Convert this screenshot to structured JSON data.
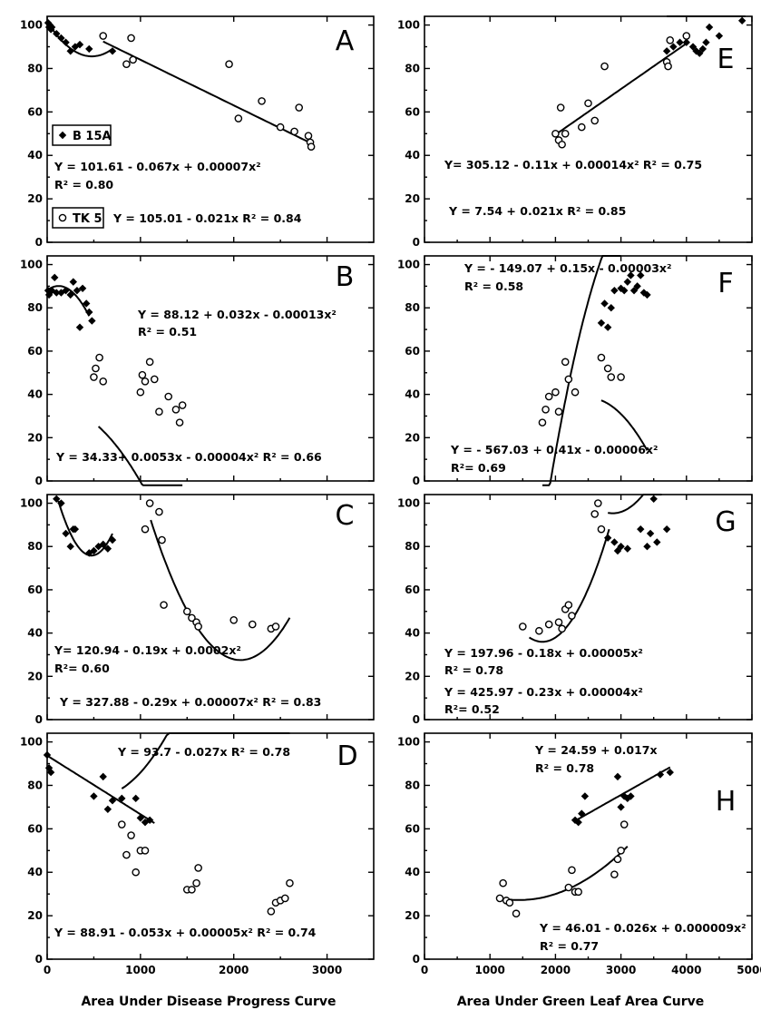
{
  "chart_data": [
    {
      "panel": "A",
      "type": "scatter",
      "xlim": [
        0,
        3500
      ],
      "ylim": [
        0,
        100
      ],
      "xticks": [
        "0",
        "1000",
        "2000",
        "3000"
      ],
      "yticks": [
        "0",
        "20",
        "40",
        "60",
        "80",
        "100"
      ],
      "annotations": [
        {
          "text": "Y = 101.61 - 0.067x + 0.00007x²"
        },
        {
          "text": "R² = 0.80"
        },
        {
          "text": "Y = 105.01 - 0.021x    R² = 0.84"
        }
      ],
      "legend": [
        {
          "label": "B 15A",
          "marker": "filled-diamond"
        },
        {
          "label": "TK 5",
          "marker": "open-circle"
        }
      ],
      "series": [
        {
          "name": "B 15A",
          "marker": "filled-diamond",
          "x": [
            10,
            20,
            30,
            40,
            50,
            100,
            150,
            200,
            250,
            300,
            350,
            450,
            700
          ],
          "y": [
            101,
            99,
            100,
            98,
            99,
            96,
            94,
            92,
            88,
            90,
            91,
            89,
            88
          ],
          "fit": {
            "kind": "quadratic",
            "coef": [
              101.61,
              -0.067,
              7e-05
            ],
            "x_range": [
              0,
              700
            ]
          }
        },
        {
          "name": "TK 5",
          "marker": "open-circle",
          "x": [
            600,
            850,
            900,
            920,
            1950,
            2050,
            2300,
            2500,
            2650,
            2700,
            2800,
            2820,
            2830
          ],
          "y": [
            95,
            82,
            94,
            84,
            82,
            57,
            65,
            53,
            51,
            62,
            49,
            46,
            44
          ],
          "fit": {
            "kind": "linear",
            "coef": [
              105.01,
              -0.021
            ],
            "x_range": [
              600,
              2830
            ]
          }
        }
      ]
    },
    {
      "panel": "B",
      "type": "scatter",
      "xlim": [
        0,
        3500
      ],
      "ylim": [
        0,
        100
      ],
      "xticks": [
        "0",
        "1000",
        "2000",
        "3000"
      ],
      "yticks": [
        "0",
        "20",
        "40",
        "60",
        "80",
        "100"
      ],
      "annotations": [
        {
          "text": "Y = 88.12 + 0.032x - 0.00013x²"
        },
        {
          "text": "R² = 0.51"
        },
        {
          "text": "Y = 34.33+ 0.0053x - 0.00004x²   R² = 0.66"
        }
      ],
      "series": [
        {
          "name": "B 15A",
          "marker": "filled-diamond",
          "x": [
            10,
            20,
            50,
            80,
            100,
            150,
            200,
            250,
            280,
            320,
            350,
            380,
            420,
            450,
            480
          ],
          "y": [
            88,
            86,
            88,
            94,
            87,
            87,
            88,
            86,
            92,
            88,
            71,
            89,
            82,
            78,
            74
          ],
          "fit": {
            "kind": "quadratic",
            "coef": [
              88.12,
              0.032,
              -0.00013
            ],
            "x_range": [
              0,
              450
            ]
          }
        },
        {
          "name": "TK 5",
          "marker": "open-circle",
          "x": [
            500,
            520,
            560,
            600,
            1000,
            1020,
            1050,
            1100,
            1150,
            1200,
            1300,
            1380,
            1420,
            1450
          ],
          "y": [
            48,
            52,
            57,
            46,
            41,
            49,
            46,
            55,
            47,
            32,
            39,
            33,
            27,
            35
          ],
          "fit": {
            "kind": "quadratic",
            "coef": [
              34.33,
              0.0053,
              -4e-05
            ],
            "x_range": [
              550,
              1450
            ]
          }
        }
      ]
    },
    {
      "panel": "C",
      "type": "scatter",
      "xlim": [
        0,
        3500
      ],
      "ylim": [
        0,
        100
      ],
      "xticks": [
        "0",
        "1000",
        "2000",
        "3000"
      ],
      "yticks": [
        "0",
        "20",
        "40",
        "60",
        "80",
        "100"
      ],
      "annotations": [
        {
          "text": "Y= 120.94 - 0.19x + 0.0002x²"
        },
        {
          "text": "R²= 0.60"
        },
        {
          "text": "Y = 327.88 - 0.29x + 0.00007x²   R² = 0.83"
        }
      ],
      "series": [
        {
          "name": "B 15A",
          "marker": "filled-diamond",
          "x": [
            100,
            150,
            200,
            250,
            280,
            300,
            450,
            500,
            550,
            600,
            650,
            700
          ],
          "y": [
            102,
            100,
            86,
            80,
            88,
            88,
            77,
            78,
            80,
            81,
            79,
            83
          ],
          "fit": {
            "kind": "quadratic",
            "coef": [
              120.94,
              -0.19,
              0.0002
            ],
            "x_range": [
              120,
              700
            ]
          }
        },
        {
          "name": "TK 5",
          "marker": "open-circle",
          "x": [
            1050,
            1100,
            1200,
            1230,
            1250,
            1500,
            1550,
            1600,
            1620,
            2000,
            2200,
            2400,
            2450
          ],
          "y": [
            88,
            100,
            96,
            83,
            53,
            50,
            47,
            45,
            43,
            46,
            44,
            42,
            43
          ],
          "fit": {
            "kind": "quadratic",
            "coef": [
              327.88,
              -0.29,
              7e-05
            ],
            "x_range": [
              1110,
              2600
            ]
          }
        }
      ]
    },
    {
      "panel": "D",
      "type": "scatter",
      "xlim": [
        0,
        3500
      ],
      "ylim": [
        0,
        100
      ],
      "xticks": [
        "0",
        "1000",
        "2000",
        "3000"
      ],
      "yticks": [
        "0",
        "20",
        "40",
        "60",
        "80",
        "100"
      ],
      "annotations": [
        {
          "text": "Y = 93.7 - 0.027x      R² = 0.78"
        },
        {
          "text": "Y = 88.91 - 0.053x + 0.00005x²   R² = 0.74"
        }
      ],
      "series": [
        {
          "name": "B 15A",
          "marker": "filled-diamond",
          "x": [
            0,
            20,
            40,
            500,
            600,
            650,
            700,
            800,
            950,
            1000,
            1050,
            1100
          ],
          "y": [
            94,
            88,
            86,
            75,
            84,
            69,
            73,
            74,
            74,
            65,
            63,
            64
          ],
          "fit": {
            "kind": "linear",
            "coef": [
              93.7,
              -0.027
            ],
            "x_range": [
              0,
              1150
            ]
          }
        },
        {
          "name": "TK 5",
          "marker": "open-circle",
          "x": [
            800,
            850,
            900,
            950,
            1000,
            1050,
            1500,
            1550,
            1600,
            1620,
            2400,
            2450,
            2500,
            2550,
            2600
          ],
          "y": [
            62,
            48,
            57,
            40,
            50,
            50,
            32,
            32,
            35,
            42,
            22,
            26,
            27,
            28,
            35
          ],
          "fit": {
            "kind": "quadratic",
            "coef": [
              88.91,
              -0.053,
              5e-05
            ],
            "x_range": [
              800,
              2600
            ]
          }
        }
      ]
    },
    {
      "panel": "E",
      "type": "scatter",
      "xlim": [
        0,
        5000
      ],
      "ylim": [
        0,
        100
      ],
      "xticks": [
        "0",
        "1000",
        "2000",
        "3000",
        "4000",
        "5000"
      ],
      "yticks": [
        "0",
        "20",
        "40",
        "60",
        "80",
        "100"
      ],
      "annotations": [
        {
          "text": "Y= 305.12 - 0.11x + 0.00014x²  R² = 0.75"
        },
        {
          "text": "Y = 7.54 + 0.021x     R² = 0.85"
        }
      ],
      "series": [
        {
          "name": "B 15A",
          "marker": "filled-diamond",
          "x": [
            3700,
            3800,
            3900,
            4000,
            4100,
            4150,
            4200,
            4250,
            4300,
            4350,
            4500,
            4850
          ],
          "y": [
            88,
            90,
            92,
            92,
            90,
            88,
            87,
            89,
            92,
            99,
            95,
            102
          ],
          "fit": {
            "kind": "quadratic",
            "coef": [
              305.12,
              -0.11,
              0.00014
            ],
            "x_range": [
              3700,
              4900
            ]
          }
        },
        {
          "name": "TK 5",
          "marker": "open-circle",
          "x": [
            2000,
            2050,
            2080,
            2100,
            2150,
            2400,
            2500,
            2600,
            2750,
            3700,
            3720,
            3750,
            4000
          ],
          "y": [
            50,
            47,
            62,
            45,
            50,
            53,
            64,
            56,
            81,
            83,
            81,
            93,
            95
          ],
          "fit": {
            "kind": "linear",
            "coef": [
              7.54,
              0.021
            ],
            "x_range": [
              2000,
              4000
            ]
          }
        }
      ]
    },
    {
      "panel": "F",
      "type": "scatter",
      "xlim": [
        0,
        5000
      ],
      "ylim": [
        0,
        100
      ],
      "xticks": [
        "0",
        "1000",
        "2000",
        "3000",
        "4000",
        "5000"
      ],
      "yticks": [
        "0",
        "20",
        "40",
        "60",
        "80",
        "100"
      ],
      "annotations": [
        {
          "text": "Y = - 149.07 + 0.15x - 0.00003x²"
        },
        {
          "text": "R² = 0.58"
        },
        {
          "text": "Y = - 567.03 + 0.41x - 0.00006x²"
        },
        {
          "text": "R²= 0.69"
        }
      ],
      "series": [
        {
          "name": "B 15A",
          "marker": "filled-diamond",
          "x": [
            2700,
            2750,
            2800,
            2850,
            2900,
            3000,
            3050,
            3100,
            3150,
            3200,
            3250,
            3300,
            3350,
            3400
          ],
          "y": [
            73,
            82,
            71,
            80,
            88,
            89,
            88,
            92,
            95,
            88,
            90,
            95,
            87,
            86
          ],
          "fit": {
            "kind": "quadratic",
            "coef": [
              -149.07,
              0.15,
              -3e-05
            ],
            "x_range": [
              2700,
              3400
            ]
          }
        },
        {
          "name": "TK 5",
          "marker": "open-circle",
          "x": [
            1800,
            1850,
            1900,
            2000,
            2050,
            2150,
            2200,
            2300,
            2700,
            2800,
            2850,
            3000
          ],
          "y": [
            27,
            33,
            39,
            41,
            32,
            55,
            47,
            41,
            57,
            52,
            48,
            48
          ],
          "fit": {
            "kind": "quadratic",
            "coef": [
              -567.03,
              0.41,
              -6e-05
            ],
            "x_range": [
              1800,
              3000
            ]
          }
        }
      ]
    },
    {
      "panel": "G",
      "type": "scatter",
      "xlim": [
        0,
        5000
      ],
      "ylim": [
        0,
        100
      ],
      "xticks": [
        "0",
        "1000",
        "2000",
        "3000",
        "4000",
        "5000"
      ],
      "yticks": [
        "0",
        "20",
        "40",
        "60",
        "80",
        "100"
      ],
      "annotations": [
        {
          "text": "Y = 197.96 - 0.18x + 0.00005x²"
        },
        {
          "text": "R² = 0.78"
        },
        {
          "text": "Y = 425.97 - 0.23x + 0.00004x²"
        },
        {
          "text": "R²= 0.52"
        }
      ],
      "series": [
        {
          "name": "B 15A",
          "marker": "filled-diamond",
          "x": [
            2800,
            2900,
            2950,
            3000,
            3100,
            3300,
            3400,
            3450,
            3500,
            3550,
            3700
          ],
          "y": [
            84,
            82,
            78,
            80,
            79,
            88,
            80,
            86,
            102,
            82,
            88
          ],
          "fit": {
            "kind": "quadratic",
            "coef": [
              425.97,
              -0.23,
              4e-05
            ],
            "x_range": [
              2800,
              3620
            ]
          }
        },
        {
          "name": "TK 5",
          "marker": "open-circle",
          "x": [
            1500,
            1750,
            1900,
            2050,
            2100,
            2150,
            2200,
            2250,
            2600,
            2650,
            2700
          ],
          "y": [
            43,
            41,
            44,
            45,
            42,
            51,
            53,
            48,
            95,
            100,
            88
          ],
          "fit": {
            "kind": "quadratic",
            "coef": [
              197.96,
              -0.18,
              5e-05
            ],
            "x_range": [
              1600,
              2820
            ]
          }
        }
      ]
    },
    {
      "panel": "H",
      "type": "scatter",
      "xlim": [
        0,
        5000
      ],
      "ylim": [
        0,
        100
      ],
      "xticks": [
        "0",
        "1000",
        "2000",
        "3000",
        "4000",
        "5000"
      ],
      "yticks": [
        "0",
        "20",
        "40",
        "60",
        "80",
        "100"
      ],
      "annotations": [
        {
          "text": "Y = 24.59 + 0.017x"
        },
        {
          "text": "R² = 0.78"
        },
        {
          "text": "Y = 46.01 - 0.026x + 0.000009x²"
        },
        {
          "text": "R² = 0.77"
        }
      ],
      "series": [
        {
          "name": "B 15A",
          "marker": "filled-diamond",
          "x": [
            2300,
            2350,
            2400,
            2450,
            2950,
            3000,
            3050,
            3100,
            3150,
            3600,
            3750
          ],
          "y": [
            64,
            63,
            67,
            75,
            84,
            70,
            75,
            74,
            75,
            85,
            86
          ],
          "fit": {
            "kind": "linear",
            "coef": [
              24.59,
              0.017
            ],
            "x_range": [
              2300,
              3750
            ]
          }
        },
        {
          "name": "TK 5",
          "marker": "open-circle",
          "x": [
            1150,
            1200,
            1250,
            1300,
            1400,
            2200,
            2250,
            2300,
            2350,
            2900,
            2950,
            3000,
            3050
          ],
          "y": [
            28,
            35,
            27,
            26,
            21,
            33,
            41,
            31,
            31,
            39,
            46,
            50,
            62
          ],
          "fit": {
            "kind": "quadratic",
            "coef": [
              46.01,
              -0.026,
              9e-06
            ],
            "x_range": [
              1150,
              3100
            ]
          }
        }
      ]
    }
  ],
  "axis_labels": {
    "left_xlabel": "Area Under Disease Progress Curve",
    "right_xlabel": "Area Under Green Leaf Area Curve"
  }
}
